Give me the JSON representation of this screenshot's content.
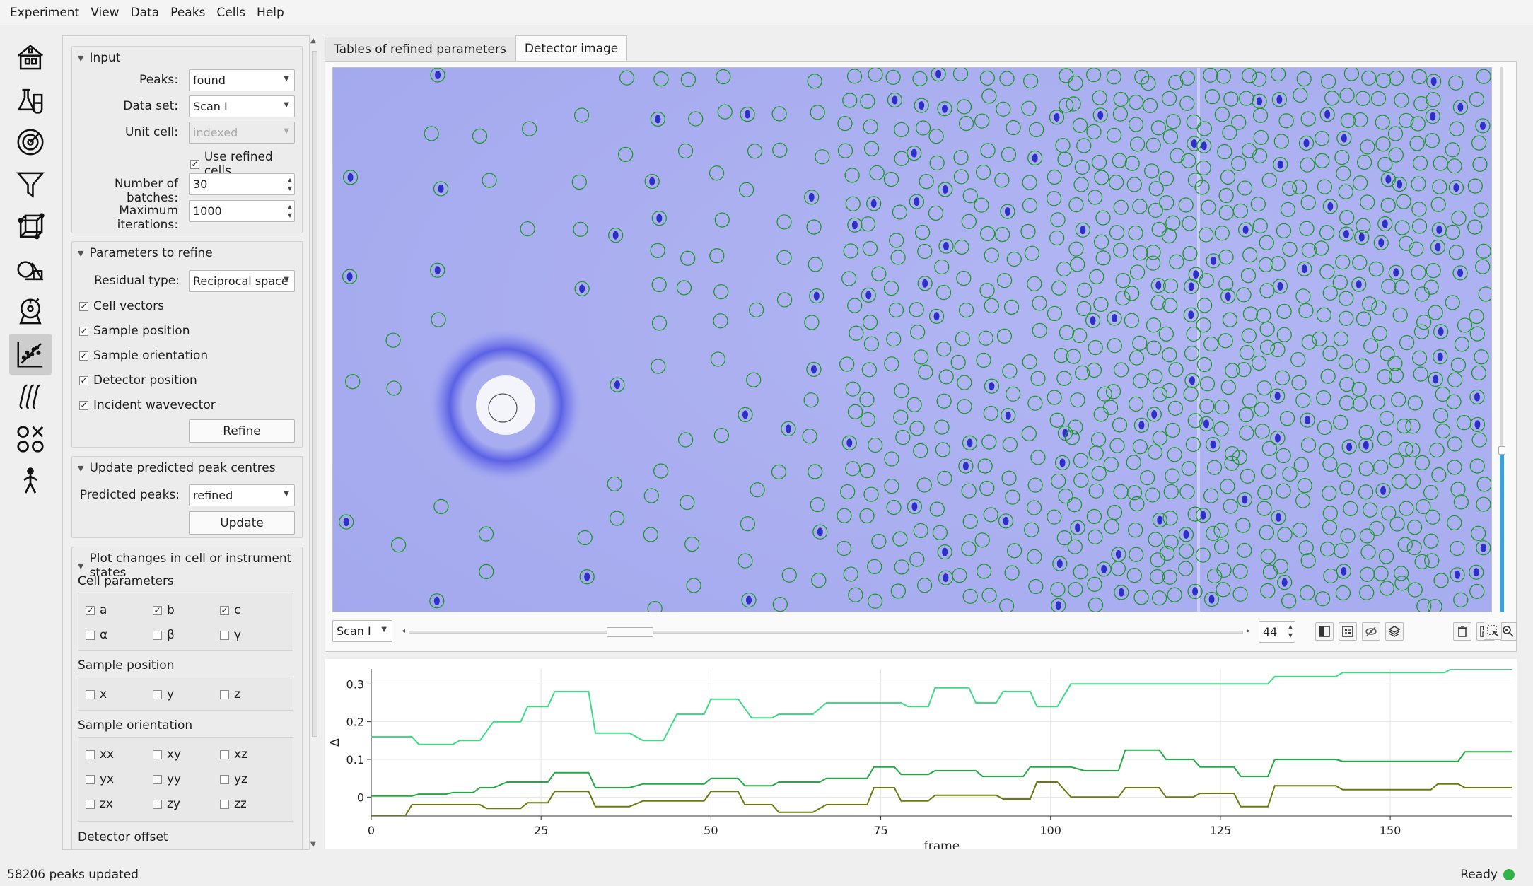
{
  "menu": [
    "Experiment",
    "View",
    "Data",
    "Peaks",
    "Cells",
    "Help"
  ],
  "toolbar_icons": [
    "experiment-icon",
    "sample-icon",
    "detector-icon",
    "filter-icon",
    "cell-icon",
    "shapes-icon",
    "goniometer-icon",
    "refine-icon",
    "integrate-icon",
    "merge-icon",
    "person-icon"
  ],
  "input": {
    "title": "Input",
    "peaks_label": "Peaks:",
    "peaks_value": "found",
    "dataset_label": "Data set:",
    "dataset_value": "Scan I",
    "unitcell_label": "Unit cell:",
    "unitcell_value": "indexed",
    "use_refined": "Use refined cells",
    "batches_label": "Number of batches:",
    "batches_value": "30",
    "iterations_label": "Maximum iterations:",
    "iterations_value": "1000"
  },
  "params": {
    "title": "Parameters to refine",
    "residual_label": "Residual type:",
    "residual_value": "Reciprocal space",
    "checks": [
      "Cell vectors",
      "Sample position",
      "Sample orientation",
      "Detector position",
      "Incident wavevector"
    ],
    "refine_button": "Refine"
  },
  "update": {
    "title": "Update predicted peak centres",
    "predicted_label": "Predicted peaks:",
    "predicted_value": "refined",
    "update_button": "Update"
  },
  "plot_changes": {
    "title": "Plot changes in cell or instrument states",
    "cell_params_label": "Cell parameters",
    "cell_params": [
      {
        "label": "a",
        "checked": true
      },
      {
        "label": "b",
        "checked": true
      },
      {
        "label": "c",
        "checked": true
      },
      {
        "label": "α",
        "checked": false
      },
      {
        "label": "β",
        "checked": false
      },
      {
        "label": "γ",
        "checked": false
      }
    ],
    "sample_position_label": "Sample position",
    "sample_position": [
      {
        "label": "x",
        "checked": false
      },
      {
        "label": "y",
        "checked": false
      },
      {
        "label": "z",
        "checked": false
      }
    ],
    "sample_orientation_label": "Sample orientation",
    "sample_orientation": [
      {
        "label": "xx",
        "checked": false
      },
      {
        "label": "xy",
        "checked": false
      },
      {
        "label": "xz",
        "checked": false
      },
      {
        "label": "yx",
        "checked": false
      },
      {
        "label": "yy",
        "checked": false
      },
      {
        "label": "yz",
        "checked": false
      },
      {
        "label": "zx",
        "checked": false
      },
      {
        "label": "zy",
        "checked": false
      },
      {
        "label": "zz",
        "checked": false
      }
    ],
    "detector_offset_label": "Detector offset"
  },
  "tabs": [
    "Tables of refined parameters",
    "Detector image"
  ],
  "viewer": {
    "scan_value": "Scan I",
    "frame_value": "44"
  },
  "status": {
    "message": "58206 peaks updated",
    "ready": "Ready"
  },
  "chart_data": {
    "type": "line",
    "xlabel": "frame",
    "ylabel": "Δ",
    "xlim": [
      0,
      168
    ],
    "ylim": [
      -0.05,
      0.34
    ],
    "x_ticks": [
      "0",
      "25",
      "50",
      "75",
      "100",
      "125",
      "150"
    ],
    "y_ticks": [
      "0",
      "0.1",
      "0.2",
      "0.3"
    ],
    "grid": true,
    "series": [
      {
        "color": "#3ddc84",
        "points": [
          [
            0,
            0.16
          ],
          [
            6,
            0.16
          ],
          [
            7,
            0.14
          ],
          [
            12,
            0.14
          ],
          [
            13,
            0.15
          ],
          [
            16,
            0.15
          ],
          [
            18,
            0.2
          ],
          [
            22,
            0.2
          ],
          [
            23,
            0.24
          ],
          [
            26,
            0.24
          ],
          [
            27,
            0.28
          ],
          [
            32,
            0.28
          ],
          [
            33,
            0.17
          ],
          [
            38,
            0.17
          ],
          [
            40,
            0.15
          ],
          [
            43,
            0.15
          ],
          [
            45,
            0.22
          ],
          [
            49,
            0.22
          ],
          [
            50,
            0.26
          ],
          [
            54,
            0.26
          ],
          [
            56,
            0.21
          ],
          [
            59,
            0.21
          ],
          [
            60,
            0.22
          ],
          [
            65,
            0.22
          ],
          [
            67,
            0.25
          ],
          [
            78,
            0.25
          ],
          [
            79,
            0.24
          ],
          [
            82,
            0.24
          ],
          [
            83,
            0.29
          ],
          [
            88,
            0.29
          ],
          [
            89,
            0.25
          ],
          [
            92,
            0.25
          ],
          [
            93,
            0.28
          ],
          [
            97,
            0.28
          ],
          [
            98,
            0.24
          ],
          [
            101,
            0.24
          ],
          [
            103,
            0.3
          ],
          [
            124,
            0.3
          ],
          [
            125,
            0.3
          ],
          [
            132,
            0.3
          ],
          [
            133,
            0.32
          ],
          [
            142,
            0.32
          ],
          [
            143,
            0.33
          ],
          [
            152,
            0.33
          ],
          [
            153,
            0.33
          ],
          [
            158,
            0.33
          ],
          [
            159,
            0.34
          ],
          [
            168,
            0.34
          ]
        ]
      },
      {
        "color": "#22aa44",
        "points": [
          [
            0,
            0.003
          ],
          [
            6,
            0.003
          ],
          [
            7,
            0.008
          ],
          [
            11,
            0.008
          ],
          [
            12,
            0.012
          ],
          [
            15,
            0.012
          ],
          [
            16,
            0.025
          ],
          [
            18,
            0.025
          ],
          [
            20,
            0.04
          ],
          [
            26,
            0.04
          ],
          [
            27,
            0.065
          ],
          [
            32,
            0.065
          ],
          [
            33,
            0.025
          ],
          [
            38,
            0.025
          ],
          [
            40,
            0.035
          ],
          [
            49,
            0.035
          ],
          [
            50,
            0.05
          ],
          [
            54,
            0.05
          ],
          [
            55,
            0.03
          ],
          [
            59,
            0.03
          ],
          [
            60,
            0.04
          ],
          [
            66,
            0.04
          ],
          [
            67,
            0.05
          ],
          [
            73,
            0.05
          ],
          [
            74,
            0.08
          ],
          [
            77,
            0.08
          ],
          [
            78,
            0.06
          ],
          [
            82,
            0.06
          ],
          [
            83,
            0.07
          ],
          [
            89,
            0.07
          ],
          [
            90,
            0.055
          ],
          [
            96,
            0.055
          ],
          [
            97,
            0.08
          ],
          [
            103,
            0.08
          ],
          [
            105,
            0.07
          ],
          [
            110,
            0.07
          ],
          [
            111,
            0.125
          ],
          [
            116,
            0.125
          ],
          [
            117,
            0.1
          ],
          [
            121,
            0.1
          ],
          [
            122,
            0.08
          ],
          [
            127,
            0.08
          ],
          [
            128,
            0.055
          ],
          [
            132,
            0.055
          ],
          [
            133,
            0.1
          ],
          [
            142,
            0.1
          ],
          [
            143,
            0.095
          ],
          [
            160,
            0.095
          ],
          [
            161,
            0.12
          ],
          [
            168,
            0.12
          ]
        ]
      },
      {
        "color": "#6b7a10",
        "points": [
          [
            0,
            -0.05
          ],
          [
            5,
            -0.05
          ],
          [
            6,
            -0.02
          ],
          [
            16,
            -0.02
          ],
          [
            17,
            -0.03
          ],
          [
            22,
            -0.03
          ],
          [
            23,
            -0.015
          ],
          [
            26,
            -0.015
          ],
          [
            27,
            0.015
          ],
          [
            32,
            0.015
          ],
          [
            33,
            -0.025
          ],
          [
            38,
            -0.025
          ],
          [
            40,
            -0.01
          ],
          [
            49,
            -0.01
          ],
          [
            50,
            0.015
          ],
          [
            54,
            0.015
          ],
          [
            55,
            -0.02
          ],
          [
            59,
            -0.02
          ],
          [
            60,
            -0.04
          ],
          [
            65,
            -0.04
          ],
          [
            67,
            -0.02
          ],
          [
            73,
            -0.02
          ],
          [
            74,
            0.025
          ],
          [
            77,
            0.025
          ],
          [
            78,
            -0.01
          ],
          [
            82,
            -0.01
          ],
          [
            83,
            0.005
          ],
          [
            92,
            0.005
          ],
          [
            93,
            -0.005
          ],
          [
            97,
            -0.005
          ],
          [
            98,
            0.04
          ],
          [
            101,
            0.04
          ],
          [
            103,
            0.0
          ],
          [
            110,
            0.0
          ],
          [
            111,
            0.025
          ],
          [
            116,
            0.025
          ],
          [
            117,
            0.0
          ],
          [
            121,
            0.0
          ],
          [
            122,
            0.01
          ],
          [
            127,
            0.01
          ],
          [
            128,
            -0.025
          ],
          [
            132,
            -0.025
          ],
          [
            133,
            0.03
          ],
          [
            142,
            0.03
          ],
          [
            143,
            0.02
          ],
          [
            151,
            0.02
          ],
          [
            152,
            0.02
          ],
          [
            156,
            0.02
          ],
          [
            157,
            0.035
          ],
          [
            160,
            0.035
          ],
          [
            161,
            0.025
          ],
          [
            168,
            0.025
          ]
        ]
      }
    ]
  }
}
